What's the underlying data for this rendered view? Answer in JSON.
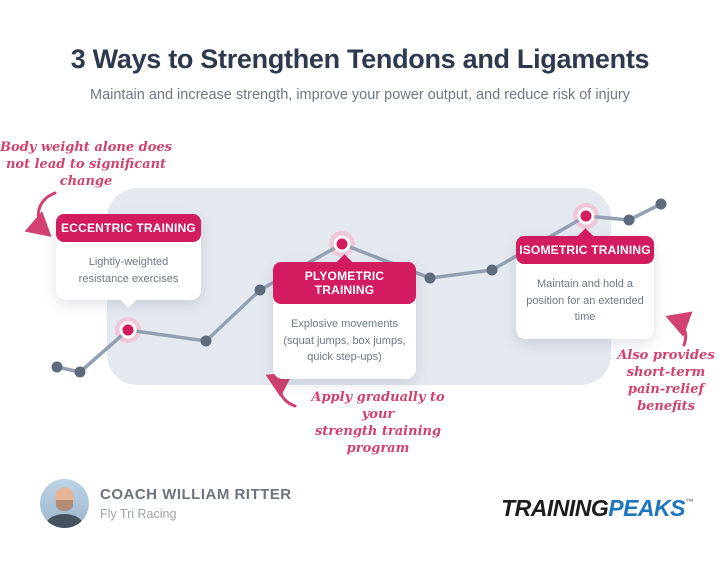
{
  "header": {
    "title": "3 Ways to Strengthen Tendons and Ligaments",
    "subtitle": "Maintain and increase strength, improve your power output, and reduce risk of injury"
  },
  "cards": [
    {
      "title": "ECCENTRIC TRAINING",
      "body": "Lightly-weighted resistance exercises"
    },
    {
      "title": "PLYOMETRIC TRAINING",
      "body": "Explosive movements (squat jumps, box jumps, quick step-ups)"
    },
    {
      "title": "ISOMETRIC TRAINING",
      "body": "Maintain and hold a position for an extended time"
    }
  ],
  "annotations": {
    "body_weight": {
      "lines": [
        "Body weight alone does",
        "not lead to significant",
        "change"
      ]
    },
    "apply_gradually": {
      "lines": [
        "Apply gradually to your",
        "strength training",
        "program"
      ]
    },
    "pain_relief": {
      "lines": [
        "Also provides",
        "short-term",
        "pain-relief",
        "benefits"
      ]
    }
  },
  "footer": {
    "coach_name": "COACH WILLIAM RITTER",
    "coach_team": "Fly Tri Racing",
    "logo": {
      "part1": "TRAINING",
      "part2": "PEAKS",
      "tm": "™"
    }
  },
  "colors": {
    "accent_pink": "#d31c5f",
    "annotation_pink": "#d2416f",
    "line_gray": "#93a0b1",
    "dot_gray": "#5d6b7d",
    "halo_pink": "#efc7d8",
    "panel_blue": "#e4e9ef",
    "title_navy": "#2d3a4d",
    "logo_blue": "#1f76bd"
  },
  "chart_data": {
    "type": "line",
    "title": "Stylized upward progress line with three milestone points",
    "points": [
      [
        57,
        367
      ],
      [
        80,
        372
      ],
      [
        128,
        330
      ],
      [
        206,
        341
      ],
      [
        260,
        290
      ],
      [
        342,
        244
      ],
      [
        430,
        278
      ],
      [
        492,
        270
      ],
      [
        586,
        216
      ],
      [
        629,
        220
      ],
      [
        661,
        204
      ]
    ],
    "milestone_indices": [
      2,
      5,
      8
    ],
    "milestone_labels": [
      "ECCENTRIC TRAINING",
      "PLYOMETRIC TRAINING",
      "ISOMETRIC TRAINING"
    ],
    "axis": "none",
    "grid": false,
    "legend": "none"
  }
}
